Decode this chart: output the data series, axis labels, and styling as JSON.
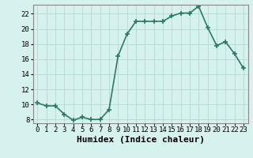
{
  "x": [
    0,
    1,
    2,
    3,
    4,
    5,
    6,
    7,
    8,
    9,
    10,
    11,
    12,
    13,
    14,
    15,
    16,
    17,
    18,
    19,
    20,
    21,
    22,
    23
  ],
  "y": [
    10.2,
    9.8,
    9.8,
    8.7,
    7.9,
    8.3,
    8.0,
    8.0,
    9.3,
    16.4,
    19.3,
    21.0,
    21.0,
    21.0,
    21.0,
    21.7,
    22.1,
    22.1,
    23.0,
    20.2,
    17.8,
    18.3,
    16.7,
    14.8
  ],
  "xlabel": "Humidex (Indice chaleur)",
  "xlim": [
    -0.5,
    23.5
  ],
  "ylim": [
    7.5,
    23.2
  ],
  "yticks": [
    8,
    10,
    12,
    14,
    16,
    18,
    20,
    22
  ],
  "xticks": [
    0,
    1,
    2,
    3,
    4,
    5,
    6,
    7,
    8,
    9,
    10,
    11,
    12,
    13,
    14,
    15,
    16,
    17,
    18,
    19,
    20,
    21,
    22,
    23
  ],
  "line_color": "#2a7a65",
  "marker": "+",
  "marker_size": 4,
  "marker_lw": 1.2,
  "bg_color": "#d6f2ee",
  "grid_color": "#b8ddd8",
  "xlabel_fontsize": 8,
  "tick_fontsize": 6.5,
  "linewidth": 1.2
}
